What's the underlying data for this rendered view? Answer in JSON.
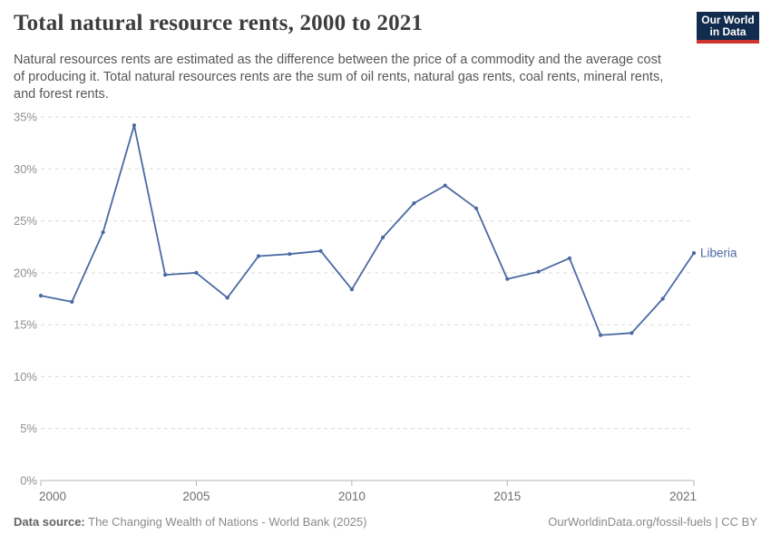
{
  "header": {
    "title": "Total natural resource rents, 2000 to 2021",
    "subtitle": "Natural resources rents are estimated as the difference between the price of a commodity and the average cost of producing it. Total natural resources rents are the sum of oil rents, natural gas rents, coal rents, mineral rents, and forest rents."
  },
  "logo": {
    "line1": "Our World",
    "line2": "in Data",
    "background_color": "#112c4e",
    "bar_color": "#cc342c"
  },
  "chart_data": {
    "type": "line",
    "title": "Total natural resource rents, 2000 to 2021",
    "xlabel": "",
    "ylabel": "",
    "xlim": [
      2000,
      2021
    ],
    "ylim": [
      0,
      35
    ],
    "x_ticks": [
      2000,
      2005,
      2010,
      2015,
      2021
    ],
    "y_ticks": [
      0,
      5,
      10,
      15,
      20,
      25,
      30,
      35
    ],
    "y_tick_suffix": "%",
    "grid": "horizontal-dashed",
    "legend_position": "end-of-line-label",
    "x": [
      2000,
      2001,
      2002,
      2003,
      2004,
      2005,
      2006,
      2007,
      2008,
      2009,
      2010,
      2011,
      2012,
      2013,
      2014,
      2015,
      2016,
      2017,
      2018,
      2019,
      2020,
      2021
    ],
    "series": [
      {
        "name": "Liberia",
        "color": "#4a69a3",
        "values": [
          17.8,
          17.2,
          23.9,
          34.2,
          19.8,
          20.0,
          17.6,
          21.6,
          21.8,
          22.1,
          18.4,
          23.4,
          26.7,
          28.4,
          26.2,
          19.4,
          20.1,
          21.4,
          14.0,
          14.2,
          17.5,
          21.9
        ]
      }
    ],
    "colors": {
      "gridline": "#dcdcdc",
      "axis": "#b5b5b5",
      "y_tick_label": "#8f8f8f",
      "x_tick_label": "#6e6e6e"
    }
  },
  "footer": {
    "source_label": "Data source:",
    "source_text": " The Changing Wealth of Nations - World Bank (2025)",
    "right_text": "OurWorldinData.org/fossil-fuels | CC BY"
  }
}
